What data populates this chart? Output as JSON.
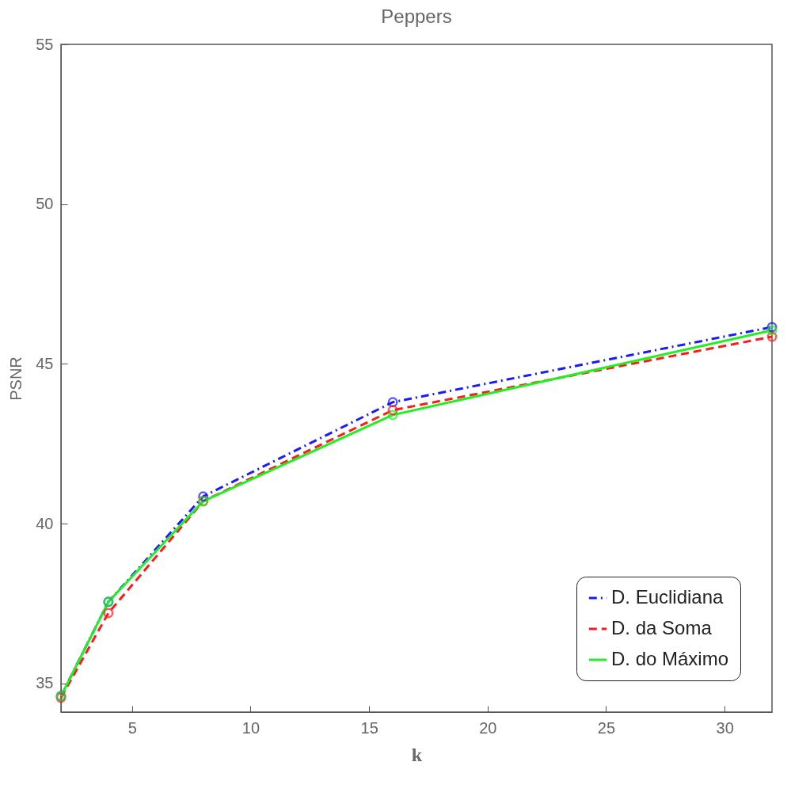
{
  "chart_data": {
    "type": "line",
    "title": "Peppers",
    "xlabel": "k",
    "ylabel": "PSNR",
    "x": [
      2,
      4,
      8,
      16,
      32
    ],
    "series": [
      {
        "name": "D. Euclidiana",
        "color": "#1a1aff",
        "line_style": "dashdot",
        "values": [
          34.6,
          37.55,
          40.85,
          43.8,
          46.15
        ]
      },
      {
        "name": "D. da Soma",
        "color": "#ff1a1a",
        "line_style": "dashed",
        "values": [
          34.55,
          37.2,
          40.7,
          43.55,
          45.85
        ]
      },
      {
        "name": "D. do Máximo",
        "color": "#22ee22",
        "line_style": "solid",
        "values": [
          34.6,
          37.55,
          40.7,
          43.4,
          46.05
        ]
      }
    ],
    "xlim": [
      2,
      32
    ],
    "xticks": [
      5,
      10,
      15,
      20,
      25,
      30
    ],
    "ylim": [
      34.1,
      55
    ],
    "yticks": [
      35,
      40,
      45,
      50,
      55
    ],
    "marker": "circle",
    "grid": false,
    "legend": "bottom right"
  }
}
